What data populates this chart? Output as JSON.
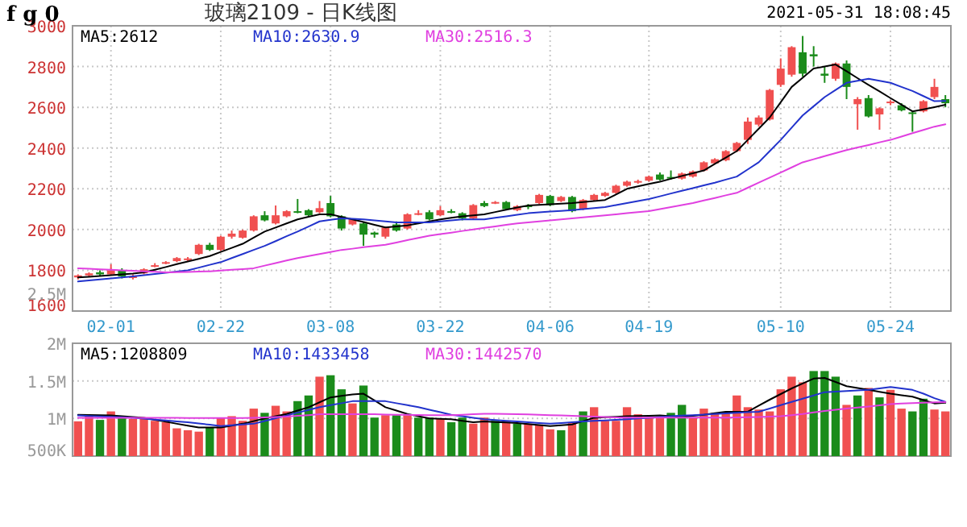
{
  "chart_data": [
    {
      "type": "candlestick",
      "title": "玻璃2109 - 日K线图",
      "annotations": [
        "f g 0",
        "2021-05-31 18:08:45"
      ],
      "categories": [
        null,
        null,
        null,
        "02-01",
        null,
        null,
        null,
        null,
        null,
        null,
        null,
        null,
        null,
        "02-22",
        null,
        null,
        null,
        null,
        null,
        null,
        null,
        null,
        null,
        "03-08",
        null,
        null,
        null,
        null,
        null,
        null,
        null,
        null,
        null,
        "03-22",
        null,
        null,
        null,
        null,
        null,
        null,
        null,
        null,
        null,
        "04-06",
        null,
        null,
        null,
        null,
        null,
        null,
        null,
        null,
        "04-19",
        null,
        null,
        null,
        null,
        null,
        null,
        null,
        null,
        null,
        null,
        null,
        "05-10",
        null,
        null,
        null,
        null,
        null,
        null,
        null,
        null,
        null,
        "05-24",
        null,
        null,
        null,
        null,
        null
      ],
      "ohlc": [
        [
          1765,
          1780,
          1755,
          1775
        ],
        [
          1775,
          1790,
          1770,
          1785
        ],
        [
          1790,
          1800,
          1770,
          1780
        ],
        [
          1780,
          1830,
          1775,
          1800
        ],
        [
          1800,
          1810,
          1760,
          1770
        ],
        [
          1765,
          1780,
          1755,
          1770
        ],
        [
          1785,
          1810,
          1780,
          1805
        ],
        [
          1820,
          1835,
          1815,
          1825
        ],
        [
          1835,
          1845,
          1830,
          1840
        ],
        [
          1845,
          1865,
          1840,
          1860
        ],
        [
          1850,
          1865,
          1845,
          1858
        ],
        [
          1880,
          1930,
          1875,
          1925
        ],
        [
          1925,
          1935,
          1895,
          1900
        ],
        [
          1900,
          1970,
          1895,
          1965
        ],
        [
          1965,
          1995,
          1955,
          1980
        ],
        [
          1960,
          2000,
          1955,
          1995
        ],
        [
          1995,
          2070,
          1990,
          2065
        ],
        [
          2070,
          2090,
          2040,
          2045
        ],
        [
          2030,
          2118,
          2025,
          2070
        ],
        [
          2065,
          2095,
          2060,
          2090
        ],
        [
          2090,
          2150,
          2080,
          2085
        ],
        [
          2095,
          2100,
          2065,
          2070
        ],
        [
          2085,
          2140,
          2080,
          2105
        ],
        [
          2130,
          2165,
          2060,
          2065
        ],
        [
          2065,
          2070,
          1995,
          2005
        ],
        [
          2025,
          2055,
          2020,
          2050
        ],
        [
          2030,
          2035,
          1920,
          1975
        ],
        [
          1985,
          1990,
          1960,
          1975
        ],
        [
          1965,
          2015,
          1955,
          2010
        ],
        [
          2025,
          2040,
          1990,
          1995
        ],
        [
          2005,
          2080,
          2000,
          2075
        ],
        [
          2075,
          2095,
          2070,
          2080
        ],
        [
          2085,
          2095,
          2045,
          2050
        ],
        [
          2070,
          2115,
          2065,
          2095
        ],
        [
          2090,
          2100,
          2080,
          2085
        ],
        [
          2080,
          2085,
          2045,
          2055
        ],
        [
          2055,
          2125,
          2050,
          2120
        ],
        [
          2130,
          2140,
          2110,
          2115
        ],
        [
          2130,
          2140,
          2125,
          2135
        ],
        [
          2135,
          2140,
          2095,
          2100
        ],
        [
          2095,
          2120,
          2090,
          2115
        ],
        [
          2118,
          2125,
          2100,
          2112
        ],
        [
          2130,
          2175,
          2125,
          2170
        ],
        [
          2165,
          2170,
          2115,
          2120
        ],
        [
          2140,
          2165,
          2135,
          2160
        ],
        [
          2160,
          2165,
          2085,
          2090
        ],
        [
          2100,
          2150,
          2095,
          2145
        ],
        [
          2145,
          2175,
          2140,
          2170
        ],
        [
          2165,
          2185,
          2160,
          2180
        ],
        [
          2180,
          2220,
          2175,
          2215
        ],
        [
          2215,
          2240,
          2210,
          2235
        ],
        [
          2232,
          2245,
          2225,
          2238
        ],
        [
          2240,
          2265,
          2235,
          2260
        ],
        [
          2270,
          2280,
          2240,
          2245
        ],
        [
          2258,
          2290,
          2245,
          2252
        ],
        [
          2250,
          2280,
          2245,
          2275
        ],
        [
          2260,
          2290,
          2255,
          2285
        ],
        [
          2290,
          2335,
          2285,
          2330
        ],
        [
          2325,
          2350,
          2320,
          2345
        ],
        [
          2340,
          2390,
          2335,
          2385
        ],
        [
          2385,
          2430,
          2380,
          2425
        ],
        [
          2440,
          2550,
          2420,
          2530
        ],
        [
          2515,
          2560,
          2505,
          2550
        ],
        [
          2540,
          2690,
          2535,
          2685
        ],
        [
          2710,
          2840,
          2700,
          2790
        ],
        [
          2760,
          2900,
          2750,
          2895
        ],
        [
          2870,
          2950,
          2750,
          2765
        ],
        [
          2860,
          2900,
          2800,
          2850
        ],
        [
          2765,
          2800,
          2720,
          2755
        ],
        [
          2740,
          2820,
          2730,
          2815
        ],
        [
          2815,
          2830,
          2640,
          2700
        ],
        [
          2615,
          2650,
          2490,
          2640
        ],
        [
          2645,
          2660,
          2550,
          2555
        ],
        [
          2565,
          2600,
          2490,
          2595
        ],
        [
          2620,
          2635,
          2610,
          2628
        ],
        [
          2610,
          2620,
          2580,
          2585
        ],
        [
          2575,
          2580,
          2480,
          2568
        ],
        [
          2580,
          2635,
          2575,
          2630
        ],
        [
          2650,
          2740,
          2640,
          2700
        ],
        [
          2640,
          2660,
          2600,
          2620
        ]
      ],
      "colors": [
        "#f05050",
        "#f05050",
        "#1b8c1b",
        "#f05050",
        "#1b8c1b",
        "#f05050",
        "#f05050",
        "#f05050",
        "#f05050",
        "#f05050",
        "#f05050",
        "#f05050",
        "#1b8c1b",
        "#f05050",
        "#f05050",
        "#f05050",
        "#f05050",
        "#1b8c1b",
        "#f05050",
        "#f05050",
        "#1b8c1b",
        "#1b8c1b",
        "#f05050",
        "#1b8c1b",
        "#1b8c1b",
        "#f05050",
        "#1b8c1b",
        "#1b8c1b",
        "#f05050",
        "#1b8c1b",
        "#f05050",
        "#f05050",
        "#1b8c1b",
        "#f05050",
        "#1b8c1b",
        "#1b8c1b",
        "#f05050",
        "#1b8c1b",
        "#f05050",
        "#1b8c1b",
        "#f05050",
        "#1b8c1b",
        "#f05050",
        "#1b8c1b",
        "#f05050",
        "#1b8c1b",
        "#f05050",
        "#f05050",
        "#f05050",
        "#f05050",
        "#f05050",
        "#f05050",
        "#f05050",
        "#1b8c1b",
        "#1b8c1b",
        "#f05050",
        "#f05050",
        "#f05050",
        "#f05050",
        "#f05050",
        "#f05050",
        "#f05050",
        "#f05050",
        "#f05050",
        "#f05050",
        "#f05050",
        "#1b8c1b",
        "#1b8c1b",
        "#1b8c1b",
        "#f05050",
        "#1b8c1b",
        "#f05050",
        "#1b8c1b",
        "#f05050",
        "#f05050",
        "#1b8c1b",
        "#1b8c1b",
        "#f05050",
        "#f05050",
        "#1b8c1b"
      ],
      "series": [
        {
          "type": "line",
          "name": "MA5:2612",
          "color": "#000000",
          "values": [
            1765,
            1768,
            1772,
            1776,
            1780,
            1784,
            1790,
            1803,
            1816,
            1830,
            1843,
            1856,
            1870,
            1890,
            1910,
            1930,
            1960,
            1990,
            2010,
            2030,
            2050,
            2063,
            2075,
            2075,
            2062,
            2050,
            2037,
            2023,
            2010,
            2015,
            2020,
            2030,
            2040,
            2050,
            2058,
            2065,
            2070,
            2075,
            2086,
            2097,
            2108,
            2118,
            2121,
            2124,
            2127,
            2130,
            2135,
            2140,
            2145,
            2172,
            2200,
            2212,
            2224,
            2235,
            2249,
            2263,
            2276,
            2290,
            2322,
            2353,
            2385,
            2440,
            2495,
            2550,
            2625,
            2700,
            2745,
            2790,
            2800,
            2810,
            2777,
            2743,
            2710,
            2678,
            2645,
            2613,
            2580,
            2590,
            2601,
            2612
          ]
        },
        {
          "type": "line",
          "name": "MA10:2630.9",
          "color": "#2233cc",
          "values": [
            1745,
            1750,
            1755,
            1760,
            1765,
            1770,
            1776,
            1782,
            1788,
            1794,
            1800,
            1813,
            1827,
            1840,
            1860,
            1880,
            1900,
            1920,
            1943,
            1967,
            1990,
            2015,
            2040,
            2048,
            2055,
            2053,
            2050,
            2045,
            2040,
            2035,
            2035,
            2035,
            2035,
            2040,
            2045,
            2050,
            2050,
            2050,
            2058,
            2065,
            2073,
            2080,
            2084,
            2088,
            2091,
            2095,
            2100,
            2105,
            2110,
            2120,
            2130,
            2140,
            2150,
            2163,
            2177,
            2190,
            2203,
            2217,
            2230,
            2245,
            2260,
            2295,
            2330,
            2385,
            2440,
            2500,
            2560,
            2605,
            2650,
            2685,
            2720,
            2730,
            2740,
            2730,
            2720,
            2700,
            2680,
            2655,
            2630,
            2630.9
          ]
        },
        {
          "type": "line",
          "name": "MA30:2516.3",
          "color": "#e040e0",
          "values": [
            1810,
            1808,
            1805,
            1803,
            1800,
            1798,
            1795,
            1793,
            1790,
            1791,
            1792,
            1794,
            1795,
            1799,
            1803,
            1806,
            1810,
            1823,
            1835,
            1848,
            1860,
            1870,
            1880,
            1890,
            1900,
            1906,
            1913,
            1919,
            1925,
            1936,
            1948,
            1959,
            1970,
            1978,
            1985,
            1993,
            2000,
            2008,
            2015,
            2023,
            2030,
            2035,
            2040,
            2045,
            2050,
            2055,
            2060,
            2065,
            2070,
            2075,
            2080,
            2085,
            2090,
            2100,
            2110,
            2120,
            2130,
            2143,
            2155,
            2168,
            2180,
            2205,
            2230,
            2255,
            2280,
            2305,
            2330,
            2345,
            2360,
            2375,
            2390,
            2403,
            2415,
            2428,
            2440,
            2456,
            2473,
            2489,
            2505,
            2516.3
          ]
        }
      ],
      "ylim": [
        1600,
        3000
      ],
      "yticks": [
        1600,
        1800,
        2000,
        2200,
        2400,
        2600,
        2800,
        3000
      ],
      "grid": true,
      "legend": "top left"
    },
    {
      "type": "bar",
      "annotations": [
        "2.5M"
      ],
      "tick_labels": "y",
      "categories": [
        null,
        null,
        null,
        null,
        null,
        null,
        null,
        null,
        null,
        null,
        null,
        null,
        null,
        null,
        null,
        null,
        null,
        null,
        null,
        null,
        null,
        null,
        null,
        null,
        null,
        null,
        null,
        null,
        null,
        null,
        null,
        null,
        null,
        null,
        null,
        null,
        null,
        null,
        null,
        null,
        null,
        null,
        null,
        null,
        null,
        null,
        null,
        null,
        null,
        null,
        null,
        null,
        null,
        null,
        null,
        null,
        null,
        null,
        null,
        null,
        null,
        null,
        null,
        null,
        null,
        null,
        null,
        null,
        null,
        null,
        null,
        null,
        null,
        null,
        null,
        null,
        null,
        null,
        null,
        null
      ],
      "series": [
        {
          "type": "bar",
          "values": [
            962000,
            1044000,
            981000,
            1094000,
            1031000,
            994000,
            1012000,
            969000,
            950000,
            869000,
            844000,
            825000,
            881000,
            1006000,
            1031000,
            969000,
            1131000,
            1075000,
            1169000,
            1094000,
            1231000,
            1306000,
            1556000,
            1575000,
            1388000,
            1200000,
            1438000,
            1012000,
            1044000,
            1044000,
            1044000,
            1012000,
            1012000,
            994000,
            950000,
            1012000,
            931000,
            1012000,
            969000,
            969000,
            931000,
            931000,
            919000,
            856000,
            844000,
            950000,
            1094000,
            1150000,
            969000,
            969000,
            1150000,
            1056000,
            1012000,
            1012000,
            1075000,
            1181000,
            1012000,
            1131000,
            1075000,
            1075000,
            1306000,
            1150000,
            1119000,
            1094000,
            1388000,
            1556000,
            1481000,
            1631000,
            1631000,
            1556000,
            1181000,
            1306000,
            1406000,
            1281000,
            1381000,
            1131000,
            1094000,
            1263000,
            1119000,
            1094000
          ],
          "colors": [
            "#f05050",
            "#f05050",
            "#1b8c1b",
            "#f05050",
            "#1b8c1b",
            "#f05050",
            "#f05050",
            "#f05050",
            "#f05050",
            "#f05050",
            "#f05050",
            "#f05050",
            "#1b8c1b",
            "#f05050",
            "#f05050",
            "#f05050",
            "#f05050",
            "#1b8c1b",
            "#f05050",
            "#f05050",
            "#1b8c1b",
            "#1b8c1b",
            "#f05050",
            "#1b8c1b",
            "#1b8c1b",
            "#f05050",
            "#1b8c1b",
            "#1b8c1b",
            "#f05050",
            "#1b8c1b",
            "#f05050",
            "#1b8c1b",
            "#1b8c1b",
            "#f05050",
            "#1b8c1b",
            "#1b8c1b",
            "#f05050",
            "#f05050",
            "#1b8c1b",
            "#f05050",
            "#1b8c1b",
            "#f05050",
            "#f05050",
            "#f05050",
            "#1b8c1b",
            "#f05050",
            "#1b8c1b",
            "#f05050",
            "#f05050",
            "#f05050",
            "#f05050",
            "#f05050",
            "#f05050",
            "#f05050",
            "#1b8c1b",
            "#1b8c1b",
            "#f05050",
            "#f05050",
            "#f05050",
            "#f05050",
            "#f05050",
            "#f05050",
            "#f05050",
            "#f05050",
            "#f05050",
            "#f05050",
            "#f05050",
            "#1b8c1b",
            "#1b8c1b",
            "#1b8c1b",
            "#f05050",
            "#1b8c1b",
            "#f05050",
            "#1b8c1b",
            "#f05050",
            "#f05050",
            "#1b8c1b",
            "#1b8c1b",
            "#f05050",
            "#f05050"
          ]
        },
        {
          "type": "line",
          "name": "MA5:1208809",
          "color": "#000000",
          "values": [
            1050000,
            1047000,
            1043000,
            1040000,
            1030000,
            1020000,
            1010000,
            983000,
            957000,
            930000,
            905000,
            880000,
            880000,
            880000,
            905000,
            930000,
            965000,
            1000000,
            1030000,
            1060000,
            1105000,
            1150000,
            1215000,
            1280000,
            1300000,
            1320000,
            1330000,
            1240000,
            1150000,
            1105000,
            1060000,
            1030000,
            1000000,
            995000,
            990000,
            970000,
            950000,
            960000,
            953000,
            947000,
            940000,
            927000,
            913000,
            900000,
            910000,
            920000,
            965000,
            1010000,
            1017000,
            1023000,
            1030000,
            1033000,
            1037000,
            1040000,
            1030000,
            1020000,
            1035000,
            1050000,
            1070000,
            1090000,
            1090000,
            1090000,
            1170000,
            1250000,
            1325000,
            1400000,
            1465000,
            1530000,
            1540000,
            1485000,
            1430000,
            1405000,
            1380000,
            1355000,
            1330000,
            1310000,
            1290000,
            1245000,
            1200000,
            1208809
          ]
        },
        {
          "type": "line",
          "name": "MA10:1433458",
          "color": "#2233cc",
          "values": [
            1040000,
            1034000,
            1028000,
            1022000,
            1016000,
            1010000,
            998000,
            986000,
            974000,
            962000,
            950000,
            933000,
            917000,
            900000,
            910000,
            920000,
            930000,
            967000,
            1003000,
            1040000,
            1077000,
            1113000,
            1150000,
            1177000,
            1203000,
            1230000,
            1230000,
            1230000,
            1230000,
            1203000,
            1177000,
            1150000,
            1117000,
            1083000,
            1050000,
            1030000,
            1010000,
            990000,
            980000,
            970000,
            960000,
            950000,
            940000,
            930000,
            940000,
            950000,
            960000,
            968000,
            975000,
            983000,
            990000,
            1000000,
            1010000,
            1020000,
            1030000,
            1038000,
            1045000,
            1053000,
            1060000,
            1068000,
            1075000,
            1083000,
            1090000,
            1133000,
            1177000,
            1220000,
            1263000,
            1307000,
            1350000,
            1358000,
            1365000,
            1373000,
            1380000,
            1400000,
            1420000,
            1400000,
            1380000,
            1330000,
            1270000,
            1220000
          ]
        },
        {
          "type": "line",
          "name": "MA30:1442570",
          "color": "#e040e0",
          "values": [
            1010000,
            1010000,
            1010000,
            1010000,
            1010000,
            1010000,
            1010000,
            1010000,
            1010000,
            1010000,
            1005000,
            1005000,
            1005000,
            1005000,
            1005000,
            1005000,
            1010000,
            1015000,
            1020000,
            1025000,
            1035000,
            1045000,
            1056000,
            1056000,
            1056000,
            1056000,
            1056000,
            1056000,
            1052000,
            1050000,
            1048000,
            1046000,
            1045000,
            1044000,
            1044000,
            1050000,
            1056000,
            1062000,
            1062000,
            1060000,
            1058000,
            1055000,
            1050000,
            1045000,
            1040000,
            1035000,
            1030000,
            1025000,
            1020000,
            1015000,
            1012000,
            1012000,
            1012000,
            1012000,
            1012000,
            1012000,
            1012000,
            1012000,
            1012000,
            1012000,
            1015000,
            1018000,
            1020000,
            1025000,
            1030000,
            1045000,
            1060000,
            1080000,
            1100000,
            1115000,
            1131000,
            1145000,
            1160000,
            1175000,
            1190000,
            1200000,
            1205000,
            1210000,
            1215000,
            1219000
          ]
        }
      ],
      "ylim": [
        500000,
        2000000
      ],
      "yticks": [
        {
          "value": 500000,
          "label": "500K"
        },
        {
          "value": 1000000,
          "label": "1M"
        },
        {
          "value": 1500000,
          "label": "1.5M"
        },
        {
          "value": 2000000,
          "label": "2M"
        }
      ],
      "grid": true,
      "legend": "top left"
    }
  ]
}
